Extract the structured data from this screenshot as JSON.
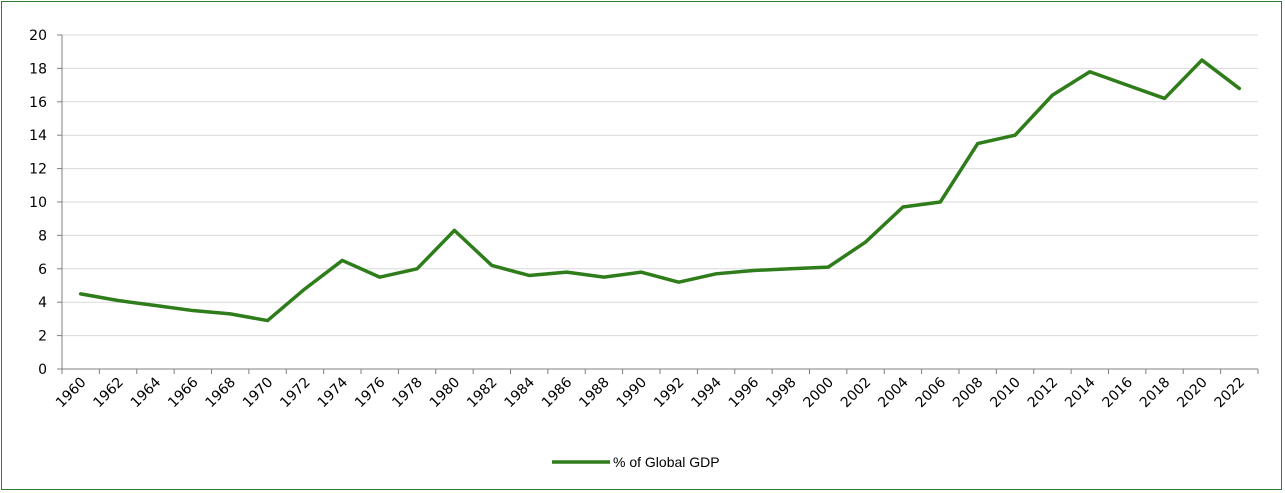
{
  "chart_data": {
    "type": "line",
    "title": "",
    "xlabel": "",
    "ylabel": "",
    "ylim": [
      0,
      20
    ],
    "y_ticks": [
      "0",
      "2",
      "4",
      "6",
      "8",
      "10",
      "12",
      "14",
      "16",
      "18",
      "20"
    ],
    "categories": [
      "1960",
      "1962",
      "1964",
      "1966",
      "1968",
      "1970",
      "1972",
      "1974",
      "1976",
      "1978",
      "1980",
      "1982",
      "1984",
      "1986",
      "1988",
      "1990",
      "1992",
      "1994",
      "1996",
      "1998",
      "2000",
      "2002",
      "2004",
      "2006",
      "2008",
      "2010",
      "2012",
      "2014",
      "2016",
      "2018",
      "2020",
      "2022"
    ],
    "grid": true,
    "legend_position": "bottom",
    "series": [
      {
        "name": "% of Global GDP",
        "color": "#2e7d1a",
        "values": [
          4.5,
          4.1,
          3.8,
          3.5,
          3.3,
          2.9,
          4.8,
          6.5,
          5.5,
          6.0,
          8.3,
          6.2,
          5.6,
          5.8,
          5.5,
          5.8,
          5.2,
          5.7,
          5.9,
          6.0,
          6.1,
          7.6,
          9.7,
          10.0,
          13.5,
          14.0,
          16.4,
          17.8,
          17.0,
          16.2,
          18.5,
          16.8
        ]
      }
    ]
  }
}
